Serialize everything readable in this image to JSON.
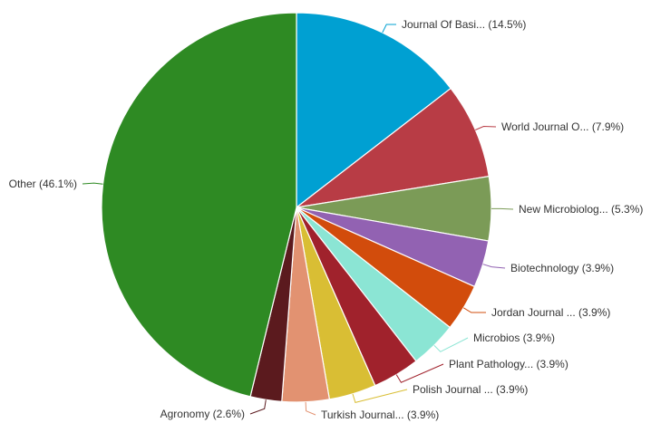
{
  "chart_data": {
    "type": "pie",
    "title": "",
    "start_angle_deg": 0,
    "direction": "clockwise",
    "slices": [
      {
        "label": "Journal Of Basi... (14.5%)",
        "value": 14.5,
        "color": "#00a0d2"
      },
      {
        "label": "World Journal O... (7.9%)",
        "value": 7.9,
        "color": "#b83c45"
      },
      {
        "label": "New Microbiolog... (5.3%)",
        "value": 5.3,
        "color": "#7b9b57"
      },
      {
        "label": "Biotechnology (3.9%)",
        "value": 3.9,
        "color": "#9262b2"
      },
      {
        "label": "Jordan Journal ... (3.9%)",
        "value": 3.9,
        "color": "#d24c0c"
      },
      {
        "label": "Microbios (3.9%)",
        "value": 3.9,
        "color": "#8be5d4"
      },
      {
        "label": "Plant Pathology... (3.9%)",
        "value": 3.9,
        "color": "#a0222c"
      },
      {
        "label": "Polish Journal ... (3.9%)",
        "value": 3.9,
        "color": "#d9be34"
      },
      {
        "label": "Turkish Journal... (3.9%)",
        "value": 3.9,
        "color": "#e29271"
      },
      {
        "label": "Agronomy (2.6%)",
        "value": 2.6,
        "color": "#5b1a1e"
      },
      {
        "label": "Other (46.1%)",
        "value": 46.1,
        "color": "#2e8a23"
      }
    ]
  }
}
